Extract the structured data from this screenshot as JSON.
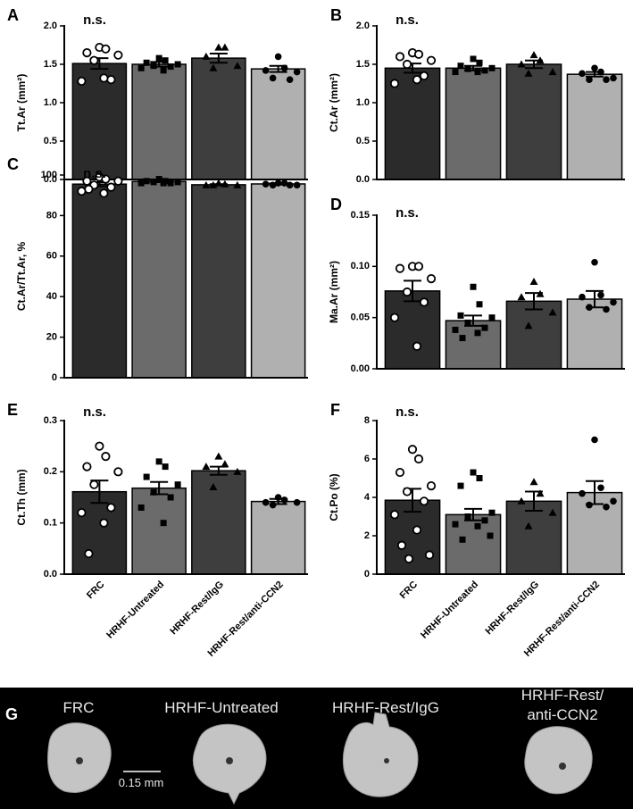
{
  "chart_data": [
    {
      "type": "bar",
      "panel": "A",
      "annotation": "n.s.",
      "ylabel": "Tt.Ar (mm²)",
      "values": [
        1.51,
        1.5,
        1.58,
        1.44
      ],
      "errors": [
        0.07,
        0.03,
        0.06,
        0.04
      ],
      "points": [
        [
          1.72,
          1.7,
          1.65,
          1.62,
          1.55,
          1.3,
          1.28,
          1.32
        ],
        [
          1.58,
          1.55,
          1.52,
          1.5,
          1.48,
          1.47,
          1.45,
          1.42
        ],
        [
          1.72,
          1.72,
          1.6,
          1.48,
          1.45
        ],
        [
          1.6,
          1.45,
          1.42,
          1.4,
          1.32,
          1.3
        ]
      ],
      "colors": [
        "#2b2b2b",
        "#6b6b6b",
        "#3e3e3e",
        "#b0b0b0"
      ],
      "markers": [
        "open-circle",
        "square",
        "triangle",
        "circle"
      ],
      "ylim": [
        0,
        2
      ],
      "yticks": [
        {
          "value": 0,
          "label": "0.0"
        },
        {
          "value": 0.5,
          "label": "0.5"
        },
        {
          "value": 1,
          "label": "1.0"
        },
        {
          "value": 1.5,
          "label": "1.5"
        },
        {
          "value": 2,
          "label": "2.0"
        }
      ]
    },
    {
      "type": "bar",
      "panel": "B",
      "annotation": "n.s.",
      "ylabel": "Ct.Ar (mm²)",
      "values": [
        1.45,
        1.45,
        1.5,
        1.37
      ],
      "errors": [
        0.06,
        0.03,
        0.05,
        0.03
      ],
      "points": [
        [
          1.65,
          1.63,
          1.6,
          1.55,
          1.5,
          1.35,
          1.25,
          1.3
        ],
        [
          1.57,
          1.52,
          1.48,
          1.45,
          1.44,
          1.42,
          1.4,
          1.4
        ],
        [
          1.62,
          1.55,
          1.5,
          1.4,
          1.38
        ],
        [
          1.45,
          1.4,
          1.38,
          1.32,
          1.3,
          1.3
        ]
      ],
      "colors": [
        "#2b2b2b",
        "#6b6b6b",
        "#3e3e3e",
        "#b0b0b0"
      ],
      "markers": [
        "open-circle",
        "square",
        "triangle",
        "circle"
      ],
      "ylim": [
        0,
        2
      ],
      "yticks": [
        {
          "value": 0,
          "label": "0.0"
        },
        {
          "value": 0.5,
          "label": "0.5"
        },
        {
          "value": 1,
          "label": "1.0"
        },
        {
          "value": 1.5,
          "label": "1.5"
        },
        {
          "value": 2,
          "label": "2.0"
        }
      ]
    },
    {
      "type": "bar",
      "panel": "C",
      "annotation": "n.s.",
      "ylabel": "Ct.Ar/Tt.Ar, %",
      "values": [
        95.5,
        96.8,
        95.2,
        95.6
      ],
      "errors": [
        1,
        0.3,
        0.3,
        0.3
      ],
      "points": [
        [
          99,
          98,
          97,
          97,
          95,
          94,
          92,
          91,
          93
        ],
        [
          98,
          97,
          97,
          96.5,
          96.5,
          96,
          96,
          96
        ],
        [
          96,
          95.5,
          95,
          95,
          95
        ],
        [
          96,
          96,
          95.5,
          95,
          95,
          95
        ]
      ],
      "colors": [
        "#2b2b2b",
        "#6b6b6b",
        "#3e3e3e",
        "#b0b0b0"
      ],
      "markers": [
        "open-circle",
        "square",
        "triangle",
        "circle"
      ],
      "ylim": [
        0,
        100
      ],
      "yticks": [
        0,
        20,
        40,
        60,
        80,
        100
      ]
    },
    {
      "type": "bar",
      "panel": "D",
      "annotation": "n.s.",
      "ylabel": "Ma.Ar (mm²)",
      "values": [
        0.076,
        0.047,
        0.066,
        0.068
      ],
      "errors": [
        0.01,
        0.005,
        0.008,
        0.008
      ],
      "points": [
        [
          0.1,
          0.1,
          0.098,
          0.088,
          0.075,
          0.065,
          0.05,
          0.022
        ],
        [
          0.08,
          0.063,
          0.052,
          0.05,
          0.045,
          0.04,
          0.038,
          0.035,
          0.03
        ],
        [
          0.085,
          0.073,
          0.07,
          0.055,
          0.042
        ],
        [
          0.104,
          0.072,
          0.07,
          0.065,
          0.06,
          0.058
        ]
      ],
      "colors": [
        "#2b2b2b",
        "#6b6b6b",
        "#3e3e3e",
        "#b0b0b0"
      ],
      "markers": [
        "open-circle",
        "square",
        "triangle",
        "circle"
      ],
      "ylim": [
        0,
        0.15
      ],
      "yticks": [
        {
          "value": 0,
          "label": "0.00"
        },
        {
          "value": 0.05,
          "label": "0.05"
        },
        {
          "value": 0.1,
          "label": "0.10"
        },
        {
          "value": 0.15,
          "label": "0.15"
        }
      ]
    },
    {
      "type": "bar",
      "panel": "E",
      "annotation": "n.s.",
      "ylabel": "Ct.Th (mm)",
      "categories": [
        "FRC",
        "HRHF-Untreated",
        "HRHF-Rest/IgG",
        "HRHF-Rest/anti-CCN2"
      ],
      "values": [
        0.161,
        0.168,
        0.202,
        0.142
      ],
      "errors": [
        0.022,
        0.012,
        0.008,
        0.005
      ],
      "points": [
        [
          0.25,
          0.23,
          0.21,
          0.2,
          0.175,
          0.13,
          0.12,
          0.1,
          0.04
        ],
        [
          0.22,
          0.21,
          0.19,
          0.175,
          0.16,
          0.15,
          0.13,
          0.1
        ],
        [
          0.23,
          0.215,
          0.21,
          0.2,
          0.17
        ],
        [
          0.15,
          0.145,
          0.14,
          0.14,
          0.135
        ]
      ],
      "colors": [
        "#2b2b2b",
        "#6b6b6b",
        "#3e3e3e",
        "#b0b0b0"
      ],
      "markers": [
        "open-circle",
        "square",
        "triangle",
        "circle"
      ],
      "ylim": [
        0,
        0.3
      ],
      "yticks": [
        {
          "value": 0,
          "label": "0.0"
        },
        {
          "value": 0.1,
          "label": "0.1"
        },
        {
          "value": 0.2,
          "label": "0.2"
        },
        {
          "value": 0.3,
          "label": "0.3"
        }
      ]
    },
    {
      "type": "bar",
      "panel": "F",
      "annotation": "n.s.",
      "ylabel": "Ct.Po (%)",
      "categories": [
        "FRC",
        "HRHF-Untreated",
        "HRHF-Rest/IgG",
        "HRHF-Rest/anti-CCN2"
      ],
      "values": [
        3.85,
        3.1,
        3.8,
        4.25
      ],
      "errors": [
        0.6,
        0.3,
        0.5,
        0.6
      ],
      "points": [
        [
          6.5,
          6.0,
          5.3,
          4.6,
          4.3,
          3.8,
          3.1,
          2.3,
          1.5,
          1.0,
          0.8
        ],
        [
          5.3,
          5.0,
          4.6,
          3.2,
          3.0,
          2.8,
          2.6,
          2.5,
          1.8,
          2.0
        ],
        [
          4.8,
          4.2,
          3.8,
          3.2,
          2.5
        ],
        [
          7.0,
          4.5,
          4.2,
          3.8,
          3.6,
          3.5
        ]
      ],
      "colors": [
        "#2b2b2b",
        "#6b6b6b",
        "#3e3e3e",
        "#b0b0b0"
      ],
      "markers": [
        "open-circle",
        "square",
        "triangle",
        "circle"
      ],
      "ylim": [
        0,
        8
      ],
      "yticks": [
        0,
        2,
        4,
        6,
        8
      ]
    }
  ],
  "image_panel": {
    "panel": "G",
    "captions": [
      [
        "FRC"
      ],
      [
        "HRHF-Untreated"
      ],
      [
        "HRHF-Rest/IgG"
      ],
      [
        "HRHF-Rest/",
        "anti-CCN2"
      ]
    ],
    "scale_bar": "0.15 mm"
  }
}
